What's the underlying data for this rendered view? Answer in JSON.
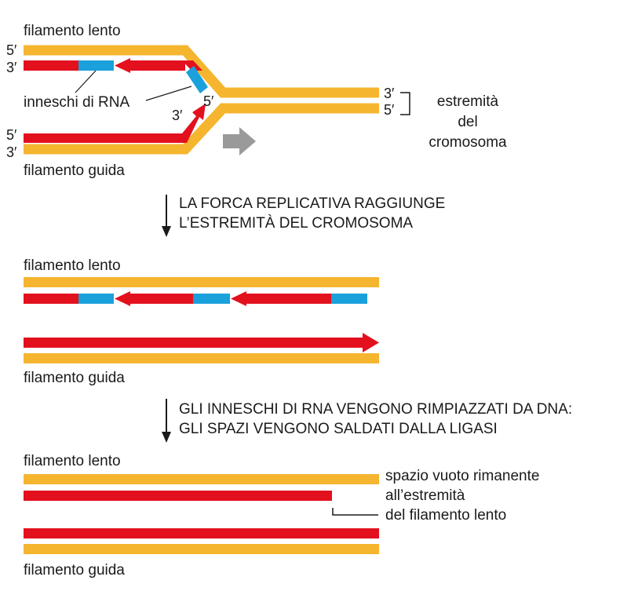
{
  "colors": {
    "template_strand": "#F5B52F",
    "new_dna": "#E3101E",
    "rna_primer": "#1AA0DB",
    "fork_arrow": "#9A9A9A",
    "text": "#1a1a1a"
  },
  "panel1": {
    "lagging_label": "filamento lento",
    "leading_label": "filamento guida",
    "primers_label": "inneschi di RNA",
    "end_label_line1": "estremità",
    "end_label_line2": "del",
    "end_label_line3": "cromosoma",
    "prime5": "5′",
    "prime3": "3′"
  },
  "step1": {
    "line1": "LA FORCA REPLICATIVA RAGGIUNGE",
    "line2": "L’ESTREMITÀ DEL CROMOSOMA"
  },
  "panel2": {
    "lagging_label": "filamento lento",
    "leading_label": "filamento guida"
  },
  "step2": {
    "line1": "GLI INNESCHI DI RNA VENGONO RIMPIAZZATI DA DNA:",
    "line2": "GLI SPAZI VENGONO SALDATI DALLA LIGASI"
  },
  "panel3": {
    "lagging_label": "filamento lento",
    "leading_label": "filamento guida",
    "gap_line1": "spazio vuoto rimanente",
    "gap_line2": "all’estremità",
    "gap_line3": "del filamento lento"
  }
}
